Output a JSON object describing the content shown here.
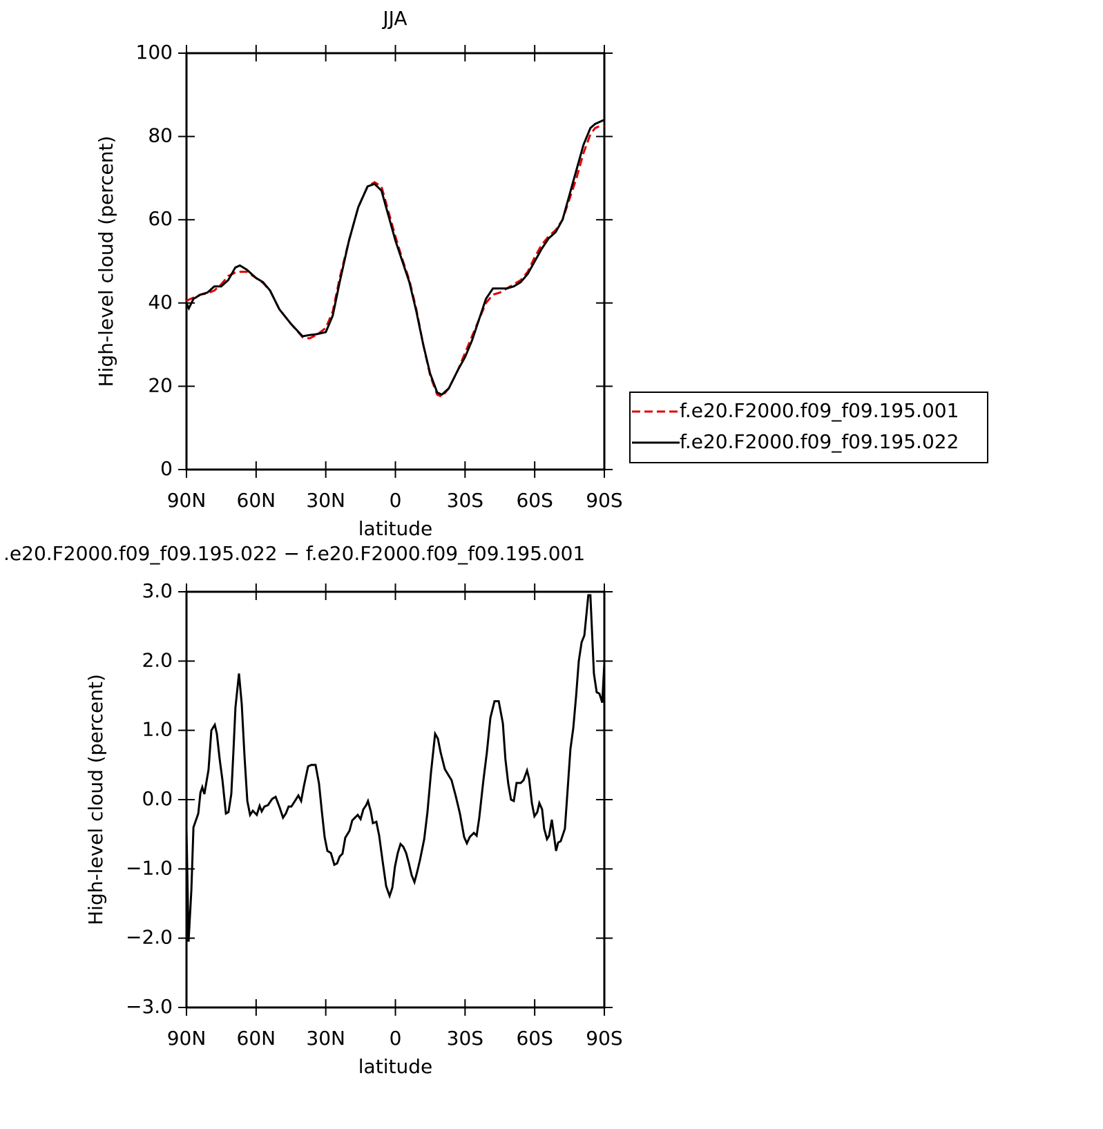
{
  "chart_data": [
    {
      "type": "line",
      "title": "JJA",
      "xlabel": "latitude",
      "ylabel": "High-level cloud (percent)",
      "xlim": [
        90,
        -90
      ],
      "xticks": [
        {
          "value": 90,
          "label": "90N"
        },
        {
          "value": 60,
          "label": "60N"
        },
        {
          "value": 30,
          "label": "30N"
        },
        0,
        {
          "value": -30,
          "label": "30S"
        },
        {
          "value": -60,
          "label": "60S"
        },
        {
          "value": -90,
          "label": "90S"
        }
      ],
      "ylim": [
        0,
        100
      ],
      "yticks": [
        0,
        20,
        40,
        60,
        80,
        100
      ],
      "legend": "right",
      "x": [
        90,
        89,
        87,
        84,
        81,
        78,
        75,
        72,
        69,
        67,
        64,
        60,
        57,
        54,
        50,
        45,
        40,
        37,
        34,
        30,
        27,
        24,
        20,
        16,
        12,
        9,
        6,
        3,
        0,
        -3,
        -6,
        -9,
        -12,
        -15,
        -18,
        -20,
        -23,
        -27,
        -30,
        -33,
        -36,
        -39,
        -42,
        -45,
        -48,
        -51,
        -54,
        -57,
        -60,
        -63,
        -66,
        -69,
        -72,
        -75,
        -78,
        -81,
        -84,
        -86,
        -88,
        -90
      ],
      "series": [
        {
          "name": "f.e20.F2000.f09_f09.195.001",
          "color": "#e00000",
          "dash": true,
          "values": [
            40.5,
            40.8,
            41.3,
            42,
            42.3,
            43,
            44.5,
            46.5,
            47.3,
            47.5,
            47.5,
            46,
            44.8,
            43,
            38.5,
            35,
            31.8,
            31.5,
            32.3,
            34,
            38,
            46,
            55,
            63,
            68,
            69,
            68,
            62,
            56,
            50.5,
            45.5,
            38.5,
            30,
            22.5,
            18,
            17.5,
            19.5,
            24,
            28,
            32,
            36,
            40,
            42,
            42.5,
            43.5,
            44.5,
            45.5,
            47.5,
            51,
            54,
            56,
            57.5,
            60,
            65,
            70,
            76,
            80.5,
            82,
            82.5,
            82.5
          ]
        },
        {
          "name": "f.e20.F2000.f09_f09.195.022",
          "color": "#000000",
          "dash": false,
          "values": [
            40,
            38.7,
            41,
            42,
            42.5,
            44,
            44,
            45.5,
            48.5,
            49,
            48,
            46,
            45,
            43,
            38.5,
            35,
            32,
            32.3,
            32.5,
            33,
            37,
            45,
            55,
            63,
            68,
            68.6,
            67,
            61,
            55,
            50,
            45,
            38,
            30,
            23,
            18.5,
            18,
            19.5,
            24,
            27,
            31,
            36,
            41,
            43.5,
            43.5,
            43.5,
            44,
            45,
            47,
            50,
            53,
            55.5,
            57,
            60,
            66,
            72,
            78,
            82,
            83,
            83.5,
            84
          ]
        }
      ]
    },
    {
      "type": "line",
      "title": ".e20.F2000.f09_f09.195.022 − f.e20.F2000.f09_f09.195.001",
      "xlabel": "latitude",
      "ylabel": "High-level cloud (percent)",
      "xlim": [
        90,
        -90
      ],
      "xticks": [
        {
          "value": 90,
          "label": "90N"
        },
        {
          "value": 60,
          "label": "60N"
        },
        {
          "value": 30,
          "label": "30N"
        },
        0,
        {
          "value": -30,
          "label": "30S"
        },
        {
          "value": -60,
          "label": "60S"
        },
        {
          "value": -90,
          "label": "90S"
        }
      ],
      "ylim": [
        -3,
        3
      ],
      "yticks": [
        {
          "value": -3,
          "label": "−3.0"
        },
        {
          "value": -2,
          "label": "−2.0"
        },
        {
          "value": -1,
          "label": "−1.0"
        },
        {
          "value": 0,
          "label": "0.0"
        },
        {
          "value": 1,
          "label": "1.0"
        },
        {
          "value": 2,
          "label": "2.0"
        },
        {
          "value": 3,
          "label": "3.0"
        }
      ],
      "x": [
        90,
        89.1,
        87.9,
        87,
        84.9,
        84,
        83.2,
        82.3,
        80.5,
        79.3,
        77.8,
        76.9,
        75.7,
        74.5,
        73,
        71.9,
        70.7,
        69.8,
        68.9,
        67.4,
        66.2,
        65,
        63.8,
        62.6,
        61.4,
        59.7,
        58.5,
        57.6,
        56.4,
        54.9,
        53.1,
        51.6,
        49.8,
        48.4,
        47.2,
        46,
        44.8,
        43.3,
        41.8,
        40.6,
        39.4,
        37.6,
        36.2,
        34.4,
        32.9,
        31.7,
        30.5,
        29.3,
        27.8,
        26.3,
        25.1,
        24,
        22.8,
        21.6,
        19.8,
        18.6,
        17.4,
        16.2,
        15,
        13.8,
        12.6,
        11.8,
        10.6,
        9.7,
        8.2,
        7,
        5.5,
        4,
        2.5,
        1.3,
        0.2,
        -1,
        -2.2,
        -3.4,
        -4.6,
        -5.8,
        -7,
        -8.2,
        -9.4,
        -10.6,
        -12.4,
        -13.8,
        -15.3,
        -17.1,
        -18.3,
        -19.5,
        -21.3,
        -23.1,
        -24.2,
        -26,
        -27.8,
        -29.6,
        -30.8,
        -32,
        -33.8,
        -35,
        -36.1,
        -37.9,
        -39.4,
        -40.9,
        -42.7,
        -44.5,
        -46.3,
        -47.4,
        -48.6,
        -49.8,
        -51,
        -52.2,
        -54,
        -55.2,
        -56.7,
        -57.6,
        -58.8,
        -59.9,
        -61.1,
        -62,
        -63.2,
        -64.1,
        -65.3,
        -66.2,
        -67.4,
        -69.2,
        -70.1,
        -71.2,
        -73,
        -74.2,
        -75.4,
        -76.6,
        -77.8,
        -79,
        -80.2,
        -81.4,
        -83.1,
        -84,
        -85.5,
        -86.7,
        -87.9,
        -89.1,
        -90
      ],
      "color": "#000000",
      "values": [
        -0.4,
        -2.05,
        -1.3,
        -0.4,
        -0.2,
        0.1,
        0.18,
        0.08,
        0.43,
        1,
        1.08,
        0.95,
        0.58,
        0.28,
        -0.2,
        -0.18,
        0.08,
        0.68,
        1.33,
        1.82,
        1.38,
        0.63,
        -0.02,
        -0.22,
        -0.16,
        -0.22,
        -0.09,
        -0.17,
        -0.1,
        -0.08,
        0.01,
        0.04,
        -0.12,
        -0.26,
        -0.2,
        -0.1,
        -0.1,
        -0.02,
        0.06,
        -0.02,
        0.2,
        0.48,
        0.5,
        0.5,
        0.23,
        -0.17,
        -0.54,
        -0.74,
        -0.77,
        -0.94,
        -0.92,
        -0.82,
        -0.78,
        -0.55,
        -0.45,
        -0.3,
        -0.26,
        -0.22,
        -0.28,
        -0.14,
        -0.08,
        -0.02,
        -0.17,
        -0.34,
        -0.32,
        -0.52,
        -0.89,
        -1.25,
        -1.39,
        -1.27,
        -0.97,
        -0.77,
        -0.64,
        -0.68,
        -0.77,
        -0.92,
        -1.09,
        -1.19,
        -1.04,
        -0.87,
        -0.57,
        -0.18,
        0.38,
        0.95,
        0.88,
        0.68,
        0.44,
        0.34,
        0.28,
        0.05,
        -0.2,
        -0.54,
        -0.63,
        -0.54,
        -0.48,
        -0.52,
        -0.27,
        0.28,
        0.68,
        1.18,
        1.42,
        1.42,
        1.1,
        0.58,
        0.23,
        0,
        -0.02,
        0.24,
        0.24,
        0.28,
        0.42,
        0.3,
        -0.05,
        -0.24,
        -0.18,
        -0.05,
        -0.14,
        -0.42,
        -0.57,
        -0.52,
        -0.29,
        -0.74,
        -0.62,
        -0.6,
        -0.42,
        0.15,
        0.73,
        1.03,
        1.48,
        2,
        2.27,
        2.37,
        2.95,
        2.95,
        1.82,
        1.55,
        1.53,
        1.4,
        1.97
      ]
    }
  ]
}
